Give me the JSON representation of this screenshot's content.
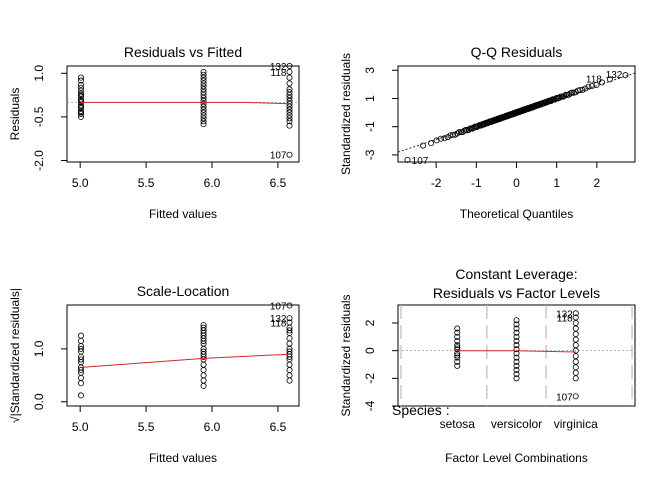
{
  "chart_data": [
    {
      "type": "scatter",
      "title": "Residuals vs Fitted",
      "xlabel": "Fitted values",
      "ylabel": "Residuals",
      "xlim": [
        4.9,
        6.66
      ],
      "ylim": [
        -2.05,
        1.25
      ],
      "xticks": [
        5.0,
        5.5,
        6.0,
        6.5
      ],
      "xtick_labels": [
        "5.0",
        "5.5",
        "6.0",
        "6.5"
      ],
      "yticks": [
        -2.0,
        -0.5,
        1.0
      ],
      "ytick_labels": [
        "-2.0",
        "-0.5",
        "1.0"
      ],
      "groups": [
        {
          "x": 5.006,
          "y": [
            0.85,
            0.75,
            0.6,
            0.5,
            0.4,
            0.3,
            0.2,
            0.1,
            0.0,
            -0.1,
            -0.2,
            -0.3,
            -0.4,
            -0.5,
            0.05,
            -0.15,
            0.25,
            -0.35
          ]
        },
        {
          "x": 5.936,
          "y": [
            1.05,
            0.95,
            0.85,
            0.75,
            0.65,
            0.55,
            0.45,
            0.35,
            0.25,
            0.15,
            0.05,
            -0.05,
            -0.15,
            -0.25,
            -0.35,
            -0.45,
            -0.55,
            -0.65,
            -0.75
          ]
        },
        {
          "x": 6.588,
          "y": [
            1.25,
            1.05,
            0.85,
            0.65,
            0.45,
            0.35,
            0.25,
            0.15,
            0.05,
            -0.05,
            -0.15,
            -0.25,
            -0.35,
            -0.45,
            -0.55,
            -0.65,
            -0.8,
            -1.8
          ]
        }
      ],
      "smooth": [
        [
          5.006,
          0.0
        ],
        [
          5.936,
          0.0
        ],
        [
          6.25,
          0.0
        ],
        [
          6.588,
          -0.05
        ]
      ],
      "annotations": [
        {
          "label": "132",
          "x": 6.588,
          "y": 1.25
        },
        {
          "label": "118",
          "x": 6.588,
          "y": 1.05
        },
        {
          "label": "107",
          "x": 6.588,
          "y": -1.8
        }
      ]
    },
    {
      "type": "scatter",
      "title": "Q-Q Residuals",
      "xlabel": "Theoretical Quantiles",
      "ylabel": "Standardized residuals",
      "xlim": [
        -2.95,
        2.95
      ],
      "ylim": [
        -3.5,
        3.3
      ],
      "xticks": [
        -2,
        -1,
        0,
        1,
        2
      ],
      "xtick_labels": [
        "-2",
        "-1",
        "0",
        "1",
        "2"
      ],
      "yticks": [
        -3,
        -1,
        1,
        3
      ],
      "ytick_labels": [
        "-3",
        "-1",
        "1",
        "3"
      ],
      "n_points": 150,
      "reference_line": {
        "slope": 0.95,
        "intercept": 0.0
      },
      "annotations": [
        {
          "label": "107",
          "x": -2.71,
          "y": -3.35
        },
        {
          "label": "118",
          "x": 2.2,
          "y": 2.35
        },
        {
          "label": "132",
          "x": 2.71,
          "y": 2.65
        }
      ]
    },
    {
      "type": "scatter",
      "title": "Scale-Location",
      "xlabel": "Fitted values",
      "ylabel": "√|Standardized residuals|",
      "xlim": [
        4.9,
        6.66
      ],
      "ylim": [
        -0.08,
        1.83
      ],
      "xticks": [
        5.0,
        5.5,
        6.0,
        6.5
      ],
      "xtick_labels": [
        "5.0",
        "5.5",
        "6.0",
        "6.5"
      ],
      "yticks": [
        0.0,
        1.0
      ],
      "ytick_labels": [
        "0.0",
        "1.0"
      ],
      "groups": [
        {
          "x": 5.006,
          "y": [
            1.25,
            1.15,
            1.05,
            0.95,
            0.85,
            0.75,
            0.65,
            0.55,
            0.45,
            0.35,
            0.12,
            0.8,
            0.6,
            1.0
          ]
        },
        {
          "x": 5.936,
          "y": [
            1.45,
            1.4,
            1.35,
            1.3,
            1.25,
            1.2,
            1.1,
            1.0,
            0.9,
            0.8,
            0.7,
            0.6,
            0.5,
            0.4,
            0.3,
            0.95,
            0.85,
            1.15
          ]
        },
        {
          "x": 6.588,
          "y": [
            1.82,
            1.58,
            1.5,
            1.4,
            1.3,
            1.2,
            1.1,
            1.0,
            0.9,
            0.8,
            0.7,
            0.6,
            0.5,
            0.4,
            1.35,
            0.95,
            0.85
          ]
        }
      ],
      "smooth": [
        [
          5.006,
          0.65
        ],
        [
          5.936,
          0.82
        ],
        [
          6.588,
          0.9
        ]
      ],
      "annotations": [
        {
          "label": "107",
          "x": 6.588,
          "y": 1.82
        },
        {
          "label": "132",
          "x": 6.588,
          "y": 1.58
        },
        {
          "label": "118",
          "x": 6.588,
          "y": 1.5
        }
      ]
    },
    {
      "type": "scatter",
      "title": "Constant Leverage:",
      "subtitle": "Residuals vs Factor Levels",
      "xlabel": "Factor Level Combinations",
      "ylabel": "Standardized residuals",
      "xlim": [
        0.0,
        4.0
      ],
      "ylim": [
        -4.0,
        3.3
      ],
      "yticks": [
        -4,
        -2,
        0,
        2
      ],
      "ytick_labels": [
        "-4",
        "-2",
        "0",
        "2"
      ],
      "factor_title": "Species :",
      "categories": [
        "setosa",
        "versicolor",
        "virginica"
      ],
      "groups": [
        {
          "x": 1.0,
          "y": [
            1.6,
            1.3,
            1.0,
            0.7,
            0.4,
            0.1,
            -0.2,
            -0.5,
            -0.8,
            -1.1,
            0.25,
            -0.35
          ]
        },
        {
          "x": 2.0,
          "y": [
            2.2,
            1.9,
            1.6,
            1.3,
            1.0,
            0.7,
            0.4,
            0.1,
            -0.2,
            -0.5,
            -0.8,
            -1.1,
            -1.4,
            -1.7,
            -2.0
          ]
        },
        {
          "x": 3.0,
          "y": [
            2.7,
            2.4,
            2.0,
            1.6,
            1.2,
            0.8,
            0.4,
            0.0,
            -0.4,
            -0.8,
            -1.2,
            -1.6,
            -2.0,
            -3.3
          ]
        }
      ],
      "smooth": [
        [
          1.0,
          0.0
        ],
        [
          2.0,
          0.0
        ],
        [
          3.0,
          -0.1
        ]
      ],
      "annotations": [
        {
          "label": "132",
          "x": 3.0,
          "y": 2.7
        },
        {
          "label": "118",
          "x": 3.0,
          "y": 2.4
        },
        {
          "label": "107",
          "x": 3.0,
          "y": -3.3
        }
      ]
    }
  ]
}
